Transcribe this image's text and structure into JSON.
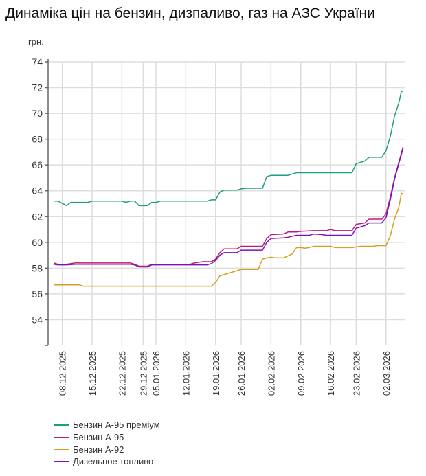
{
  "chart_data": {
    "type": "line",
    "title": "Динаміка цін на бензин, дизпаливо, газ на АЗС України",
    "ylabel": "грн.",
    "ylim": [
      52,
      74
    ],
    "yticks": [
      54,
      56,
      58,
      60,
      62,
      64,
      66,
      68,
      70,
      72,
      74
    ],
    "xlim": [
      0,
      84
    ],
    "xticks": [
      {
        "i": 3,
        "label": "08.12.2025"
      },
      {
        "i": 10,
        "label": "15.12.2025"
      },
      {
        "i": 17,
        "label": "22.12.2025"
      },
      {
        "i": 22,
        "label": "29.12.2025"
      },
      {
        "i": 25,
        "label": "05.01.2026"
      },
      {
        "i": 32,
        "label": "12.01.2026"
      },
      {
        "i": 39,
        "label": "19.01.2026"
      },
      {
        "i": 45,
        "label": "26.01.2026"
      },
      {
        "i": 52,
        "label": "02.02.2026"
      },
      {
        "i": 59,
        "label": "09.02.2026"
      },
      {
        "i": 66,
        "label": "16.02.2026"
      },
      {
        "i": 72,
        "label": "23.02.2026"
      },
      {
        "i": 79,
        "label": "02.03.2026"
      }
    ],
    "grid": true,
    "legend_position": "bottom-left",
    "series": [
      {
        "name": "Бензин А-95 преміум",
        "color": "#1f9e82",
        "points": [
          [
            1,
            63.2
          ],
          [
            2,
            63.2
          ],
          [
            4,
            62.85
          ],
          [
            5,
            63.1
          ],
          [
            9,
            63.1
          ],
          [
            10,
            63.2
          ],
          [
            17,
            63.2
          ],
          [
            18,
            63.1
          ],
          [
            19,
            63.2
          ],
          [
            20,
            63.2
          ],
          [
            21,
            62.85
          ],
          [
            23,
            62.85
          ],
          [
            24,
            63.1
          ],
          [
            25,
            63.1
          ],
          [
            26,
            63.2
          ],
          [
            37,
            63.2
          ],
          [
            38,
            63.3
          ],
          [
            39,
            63.3
          ],
          [
            40,
            63.9
          ],
          [
            41,
            64.05
          ],
          [
            44,
            64.05
          ],
          [
            45,
            64.15
          ],
          [
            46,
            64.2
          ],
          [
            50,
            64.2
          ],
          [
            51,
            65.1
          ],
          [
            52,
            65.2
          ],
          [
            56,
            65.2
          ],
          [
            58,
            65.4
          ],
          [
            71,
            65.4
          ],
          [
            72,
            66.1
          ],
          [
            74,
            66.3
          ],
          [
            75,
            66.6
          ],
          [
            78,
            66.6
          ],
          [
            79,
            67.1
          ],
          [
            80,
            68.2
          ],
          [
            81,
            69.8
          ],
          [
            82,
            70.8
          ],
          [
            82.6,
            71.7
          ],
          [
            83,
            71.7
          ]
        ]
      },
      {
        "name": "Бензин А-95",
        "color": "#c01a74",
        "points": [
          [
            1,
            58.4
          ],
          [
            2,
            58.3
          ],
          [
            4,
            58.3
          ],
          [
            6,
            58.4
          ],
          [
            19,
            58.4
          ],
          [
            20,
            58.3
          ],
          [
            21,
            58.15
          ],
          [
            23,
            58.15
          ],
          [
            24,
            58.3
          ],
          [
            33,
            58.3
          ],
          [
            34,
            58.4
          ],
          [
            36,
            58.5
          ],
          [
            38,
            58.5
          ],
          [
            39,
            58.7
          ],
          [
            40,
            59.2
          ],
          [
            41,
            59.5
          ],
          [
            44,
            59.5
          ],
          [
            45,
            59.7
          ],
          [
            50,
            59.7
          ],
          [
            51,
            60.3
          ],
          [
            52,
            60.6
          ],
          [
            55,
            60.65
          ],
          [
            56,
            60.8
          ],
          [
            58,
            60.8
          ],
          [
            59,
            60.85
          ],
          [
            62,
            60.9
          ],
          [
            65,
            60.9
          ],
          [
            66,
            61.0
          ],
          [
            67,
            60.9
          ],
          [
            71,
            60.9
          ],
          [
            72,
            61.4
          ],
          [
            74,
            61.5
          ],
          [
            75,
            61.8
          ],
          [
            78,
            61.8
          ],
          [
            79,
            62.2
          ],
          [
            80,
            63.5
          ],
          [
            81,
            65.0
          ],
          [
            83,
            67.4
          ]
        ]
      },
      {
        "name": "Бензин А-92",
        "color": "#d4a020",
        "points": [
          [
            1,
            56.7
          ],
          [
            7,
            56.7
          ],
          [
            8,
            56.6
          ],
          [
            38,
            56.6
          ],
          [
            39,
            56.9
          ],
          [
            40,
            57.4
          ],
          [
            41,
            57.5
          ],
          [
            42,
            57.6
          ],
          [
            44,
            57.8
          ],
          [
            45,
            57.9
          ],
          [
            49,
            57.9
          ],
          [
            50,
            58.7
          ],
          [
            51,
            58.8
          ],
          [
            52,
            58.85
          ],
          [
            53,
            58.8
          ],
          [
            55,
            58.8
          ],
          [
            57,
            59.1
          ],
          [
            58,
            59.6
          ],
          [
            59,
            59.6
          ],
          [
            60,
            59.55
          ],
          [
            61,
            59.6
          ],
          [
            62,
            59.7
          ],
          [
            66,
            59.7
          ],
          [
            67,
            59.6
          ],
          [
            71,
            59.6
          ],
          [
            73,
            59.7
          ],
          [
            76,
            59.7
          ],
          [
            77,
            59.75
          ],
          [
            79,
            59.75
          ],
          [
            80,
            60.5
          ],
          [
            81,
            61.8
          ],
          [
            82,
            62.7
          ],
          [
            82.6,
            63.8
          ],
          [
            83,
            63.8
          ]
        ]
      },
      {
        "name": "Дизельное топливо",
        "color": "#7a12b8",
        "points": [
          [
            1,
            58.3
          ],
          [
            2,
            58.25
          ],
          [
            4,
            58.25
          ],
          [
            6,
            58.3
          ],
          [
            19,
            58.3
          ],
          [
            20,
            58.25
          ],
          [
            21,
            58.1
          ],
          [
            23,
            58.1
          ],
          [
            24,
            58.25
          ],
          [
            37,
            58.25
          ],
          [
            38,
            58.35
          ],
          [
            39,
            58.6
          ],
          [
            40,
            59.0
          ],
          [
            41,
            59.2
          ],
          [
            44,
            59.2
          ],
          [
            45,
            59.4
          ],
          [
            50,
            59.4
          ],
          [
            51,
            60.0
          ],
          [
            52,
            60.3
          ],
          [
            55,
            60.35
          ],
          [
            56,
            60.4
          ],
          [
            58,
            60.55
          ],
          [
            61,
            60.55
          ],
          [
            62,
            60.65
          ],
          [
            64,
            60.6
          ],
          [
            65,
            60.55
          ],
          [
            71,
            60.55
          ],
          [
            72,
            61.1
          ],
          [
            74,
            61.3
          ],
          [
            75,
            61.5
          ],
          [
            78,
            61.5
          ],
          [
            79,
            61.9
          ],
          [
            80,
            63.3
          ],
          [
            81,
            64.9
          ],
          [
            83,
            67.3
          ]
        ]
      }
    ]
  }
}
